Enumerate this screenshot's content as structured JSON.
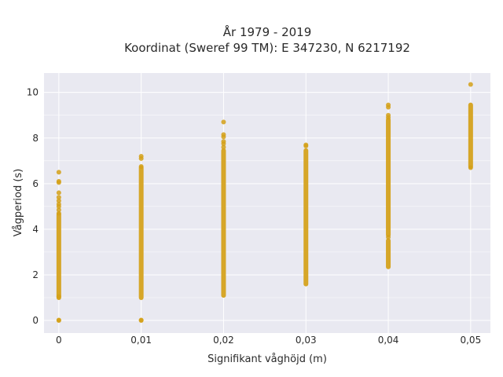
{
  "chart_data": {
    "type": "scatter",
    "title": [
      "År 1979 - 2019",
      "Koordinat (Sweref 99 TM): E 347230, N 6217192"
    ],
    "xlabel": "Signifikant våghöjd (m)",
    "ylabel": "Vågperiod (s)",
    "xlim": [
      -0.0018,
      0.0524
    ],
    "ylim": [
      -0.55,
      10.85
    ],
    "x_ticks": [
      0,
      0.01,
      0.02,
      0.03,
      0.04,
      0.05
    ],
    "x_tick_labels": [
      "0",
      "0,01",
      "0,02",
      "0,03",
      "0,04",
      "0,05"
    ],
    "y_ticks": [
      0,
      2,
      4,
      6,
      8,
      10
    ],
    "y_tick_labels": [
      "0",
      "2",
      "4",
      "6",
      "8",
      "10"
    ],
    "grid": true,
    "colors": {
      "marker": "#d4a017",
      "plot_bg": "#e9e9f1",
      "grid": "#ffffff"
    },
    "series": [
      {
        "x": 0,
        "ranges": [
          [
            1.0,
            4.65
          ]
        ],
        "points": [
          0,
          0.02,
          1.05,
          4.7,
          4.85,
          5.0,
          5.1,
          5.25,
          5.4,
          5.6,
          6.05,
          6.1,
          6.5
        ]
      },
      {
        "x": 0.01,
        "ranges": [
          [
            1.0,
            6.7
          ]
        ],
        "points": [
          0,
          0.02,
          6.75,
          7.1,
          7.2
        ]
      },
      {
        "x": 0.02,
        "ranges": [
          [
            1.1,
            7.45
          ]
        ],
        "points": [
          7.6,
          7.75,
          7.85,
          8.05,
          8.15,
          8.7
        ]
      },
      {
        "x": 0.03,
        "ranges": [
          [
            1.6,
            7.45
          ]
        ],
        "points": [
          7.65,
          7.7
        ]
      },
      {
        "x": 0.04,
        "ranges": [
          [
            2.35,
            3.5
          ],
          [
            3.75,
            8.8
          ]
        ],
        "points": [
          3.65,
          8.9,
          9.0,
          9.35,
          9.45
        ]
      },
      {
        "x": 0.05,
        "ranges": [
          [
            6.75,
            9.45
          ]
        ],
        "points": [
          6.7,
          10.35
        ]
      }
    ]
  }
}
